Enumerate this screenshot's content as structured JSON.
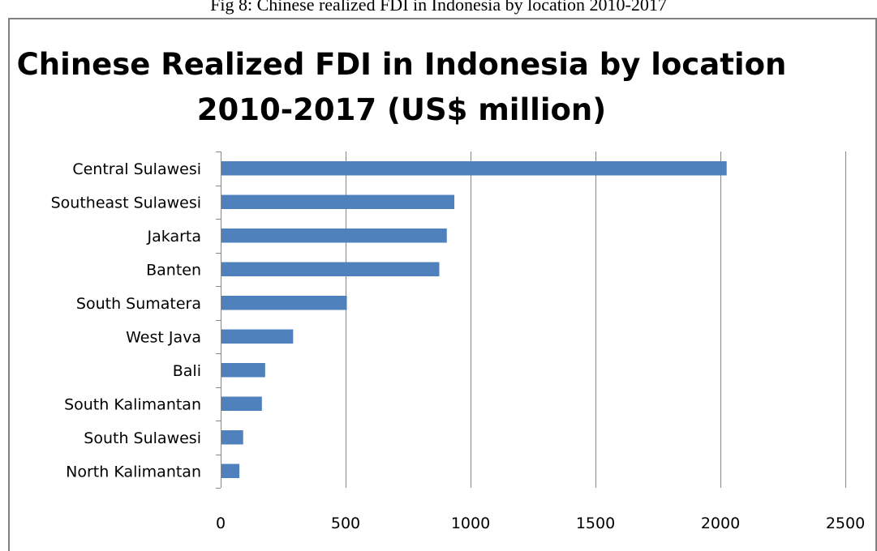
{
  "caption": "Fig 8: Chinese realized FDI in Indonesia by location 2010-2017",
  "chart_data": {
    "type": "bar",
    "orientation": "horizontal",
    "title": "Chinese Realized FDI in Indonesia by location 2010-2017 (US$ million)",
    "categories": [
      "Central Sulawesi",
      "Southeast Sulawesi",
      "Jakarta",
      "Banten",
      "South Sumatera",
      "West Java",
      "Bali",
      "South Kalimantan",
      "South Sulawesi",
      "North Kalimantan"
    ],
    "values": [
      2025,
      935,
      905,
      875,
      505,
      290,
      178,
      165,
      90,
      75
    ],
    "xlim": [
      0,
      2500
    ],
    "xticks": [
      0,
      500,
      1000,
      1500,
      2000,
      2500
    ],
    "xlabel": "",
    "ylabel": "",
    "grid": "vertical major gridlines",
    "legend": "none",
    "bar_color": "#4F81BD",
    "grid_color": "#868686"
  }
}
